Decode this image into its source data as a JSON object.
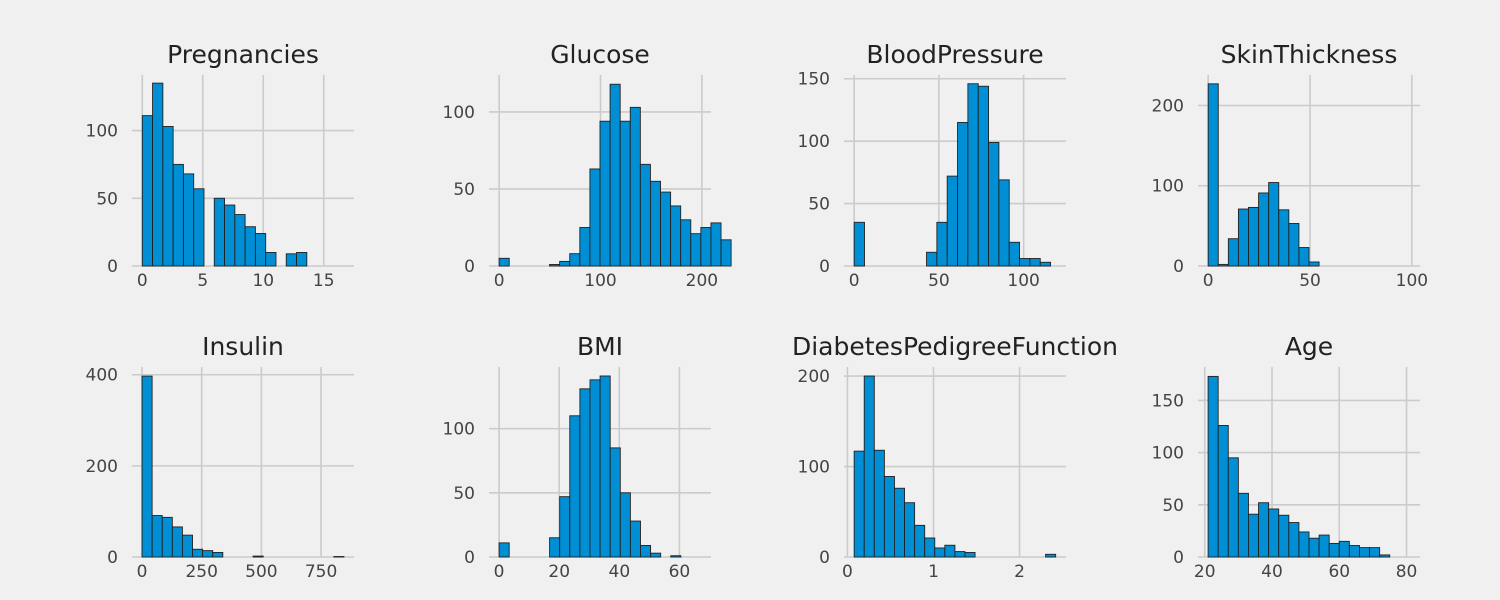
{
  "colors": {
    "background": "#f0f0f0",
    "bar": "#008fd5",
    "bar_edge": "#222222",
    "grid": "#cbcbcb",
    "text": "#222222"
  },
  "chart_data": [
    {
      "type": "bar",
      "title": "Pregnancies",
      "bin_start": 0,
      "bin_width": 0.85,
      "counts": [
        111,
        135,
        103,
        75,
        68,
        57,
        0,
        50,
        45,
        38,
        29,
        24,
        10,
        0,
        9,
        10
      ],
      "xlim": [
        -0.85,
        17.5
      ],
      "xticks": [
        0,
        5,
        10,
        15
      ],
      "ylim": [
        0,
        141
      ],
      "yticks": [
        0,
        50,
        100
      ],
      "grid": true
    },
    {
      "type": "bar",
      "title": "Glucose",
      "bin_start": 0,
      "bin_width": 9.95,
      "counts": [
        5,
        0,
        0,
        0,
        0,
        1,
        3,
        8,
        25,
        63,
        94,
        118,
        94,
        103,
        66,
        55,
        48,
        39,
        30,
        21,
        25,
        28,
        17
      ],
      "xlim": [
        -10,
        209
      ],
      "xticks": [
        0,
        100,
        200
      ],
      "ylim": [
        0,
        124
      ],
      "yticks": [
        0,
        50,
        100
      ],
      "grid": true
    },
    {
      "type": "bar",
      "title": "BloodPressure",
      "bin_start": 0,
      "bin_width": 6.1,
      "counts": [
        35,
        0,
        0,
        0,
        0,
        0,
        0,
        11,
        35,
        72,
        115,
        146,
        144,
        99,
        69,
        19,
        6,
        6,
        3
      ],
      "xlim": [
        -6,
        125
      ],
      "xticks": [
        0,
        50,
        100
      ],
      "ylim": [
        0,
        153
      ],
      "yticks": [
        0,
        50,
        100,
        150
      ],
      "grid": true
    },
    {
      "type": "bar",
      "title": "SkinThickness",
      "bin_start": 0,
      "bin_width": 4.95,
      "counts": [
        227,
        2,
        34,
        71,
        73,
        91,
        104,
        70,
        53,
        23,
        5
      ],
      "xlim": [
        -5,
        104
      ],
      "xticks": [
        0,
        50,
        100
      ],
      "ylim": [
        0,
        238
      ],
      "yticks": [
        0,
        100,
        200
      ],
      "grid": true
    },
    {
      "type": "bar",
      "title": "Insulin",
      "bin_start": 0,
      "bin_width": 42.3,
      "counts": [
        397,
        91,
        87,
        66,
        48,
        17,
        14,
        10,
        0,
        0,
        0,
        2,
        0,
        0,
        0,
        0,
        0,
        0,
        0,
        1
      ],
      "xlim": [
        -42,
        888
      ],
      "xticks": [
        0,
        250,
        500,
        750
      ],
      "ylim": [
        0,
        417
      ],
      "yticks": [
        0,
        200,
        400
      ],
      "grid": true
    },
    {
      "type": "bar",
      "title": "BMI",
      "bin_start": 0,
      "bin_width": 3.36,
      "counts": [
        11,
        0,
        0,
        0,
        0,
        15,
        47,
        110,
        131,
        138,
        141,
        85,
        50,
        28,
        9,
        3,
        0,
        1,
        0,
        0
      ],
      "xlim": [
        -3.36,
        70.5
      ],
      "xticks": [
        0,
        20,
        40,
        60
      ],
      "ylim": [
        0,
        148
      ],
      "yticks": [
        0,
        50,
        100
      ],
      "grid": true
    },
    {
      "type": "bar",
      "title": "DiabetesPedigreeFunction",
      "bin_start": 0.078,
      "bin_width": 0.1171,
      "counts": [
        117,
        200,
        118,
        89,
        76,
        60,
        35,
        21,
        10,
        13,
        6,
        5,
        0,
        0,
        0,
        0,
        0,
        0,
        0,
        3
      ],
      "xlim": [
        -0.04,
        2.54
      ],
      "xticks": [
        0,
        1,
        2
      ],
      "ylim": [
        0,
        210
      ],
      "yticks": [
        0,
        100,
        200
      ],
      "grid": true
    },
    {
      "type": "bar",
      "title": "Age",
      "bin_start": 21,
      "bin_width": 3,
      "counts": [
        173,
        126,
        95,
        61,
        41,
        52,
        46,
        40,
        33,
        24,
        18,
        21,
        13,
        15,
        11,
        9,
        9,
        2,
        0,
        0
      ],
      "xlim": [
        18,
        84
      ],
      "xticks": [
        20,
        40,
        60,
        80
      ],
      "ylim": [
        0,
        182
      ],
      "yticks": [
        0,
        50,
        100,
        150
      ],
      "grid": true
    }
  ]
}
